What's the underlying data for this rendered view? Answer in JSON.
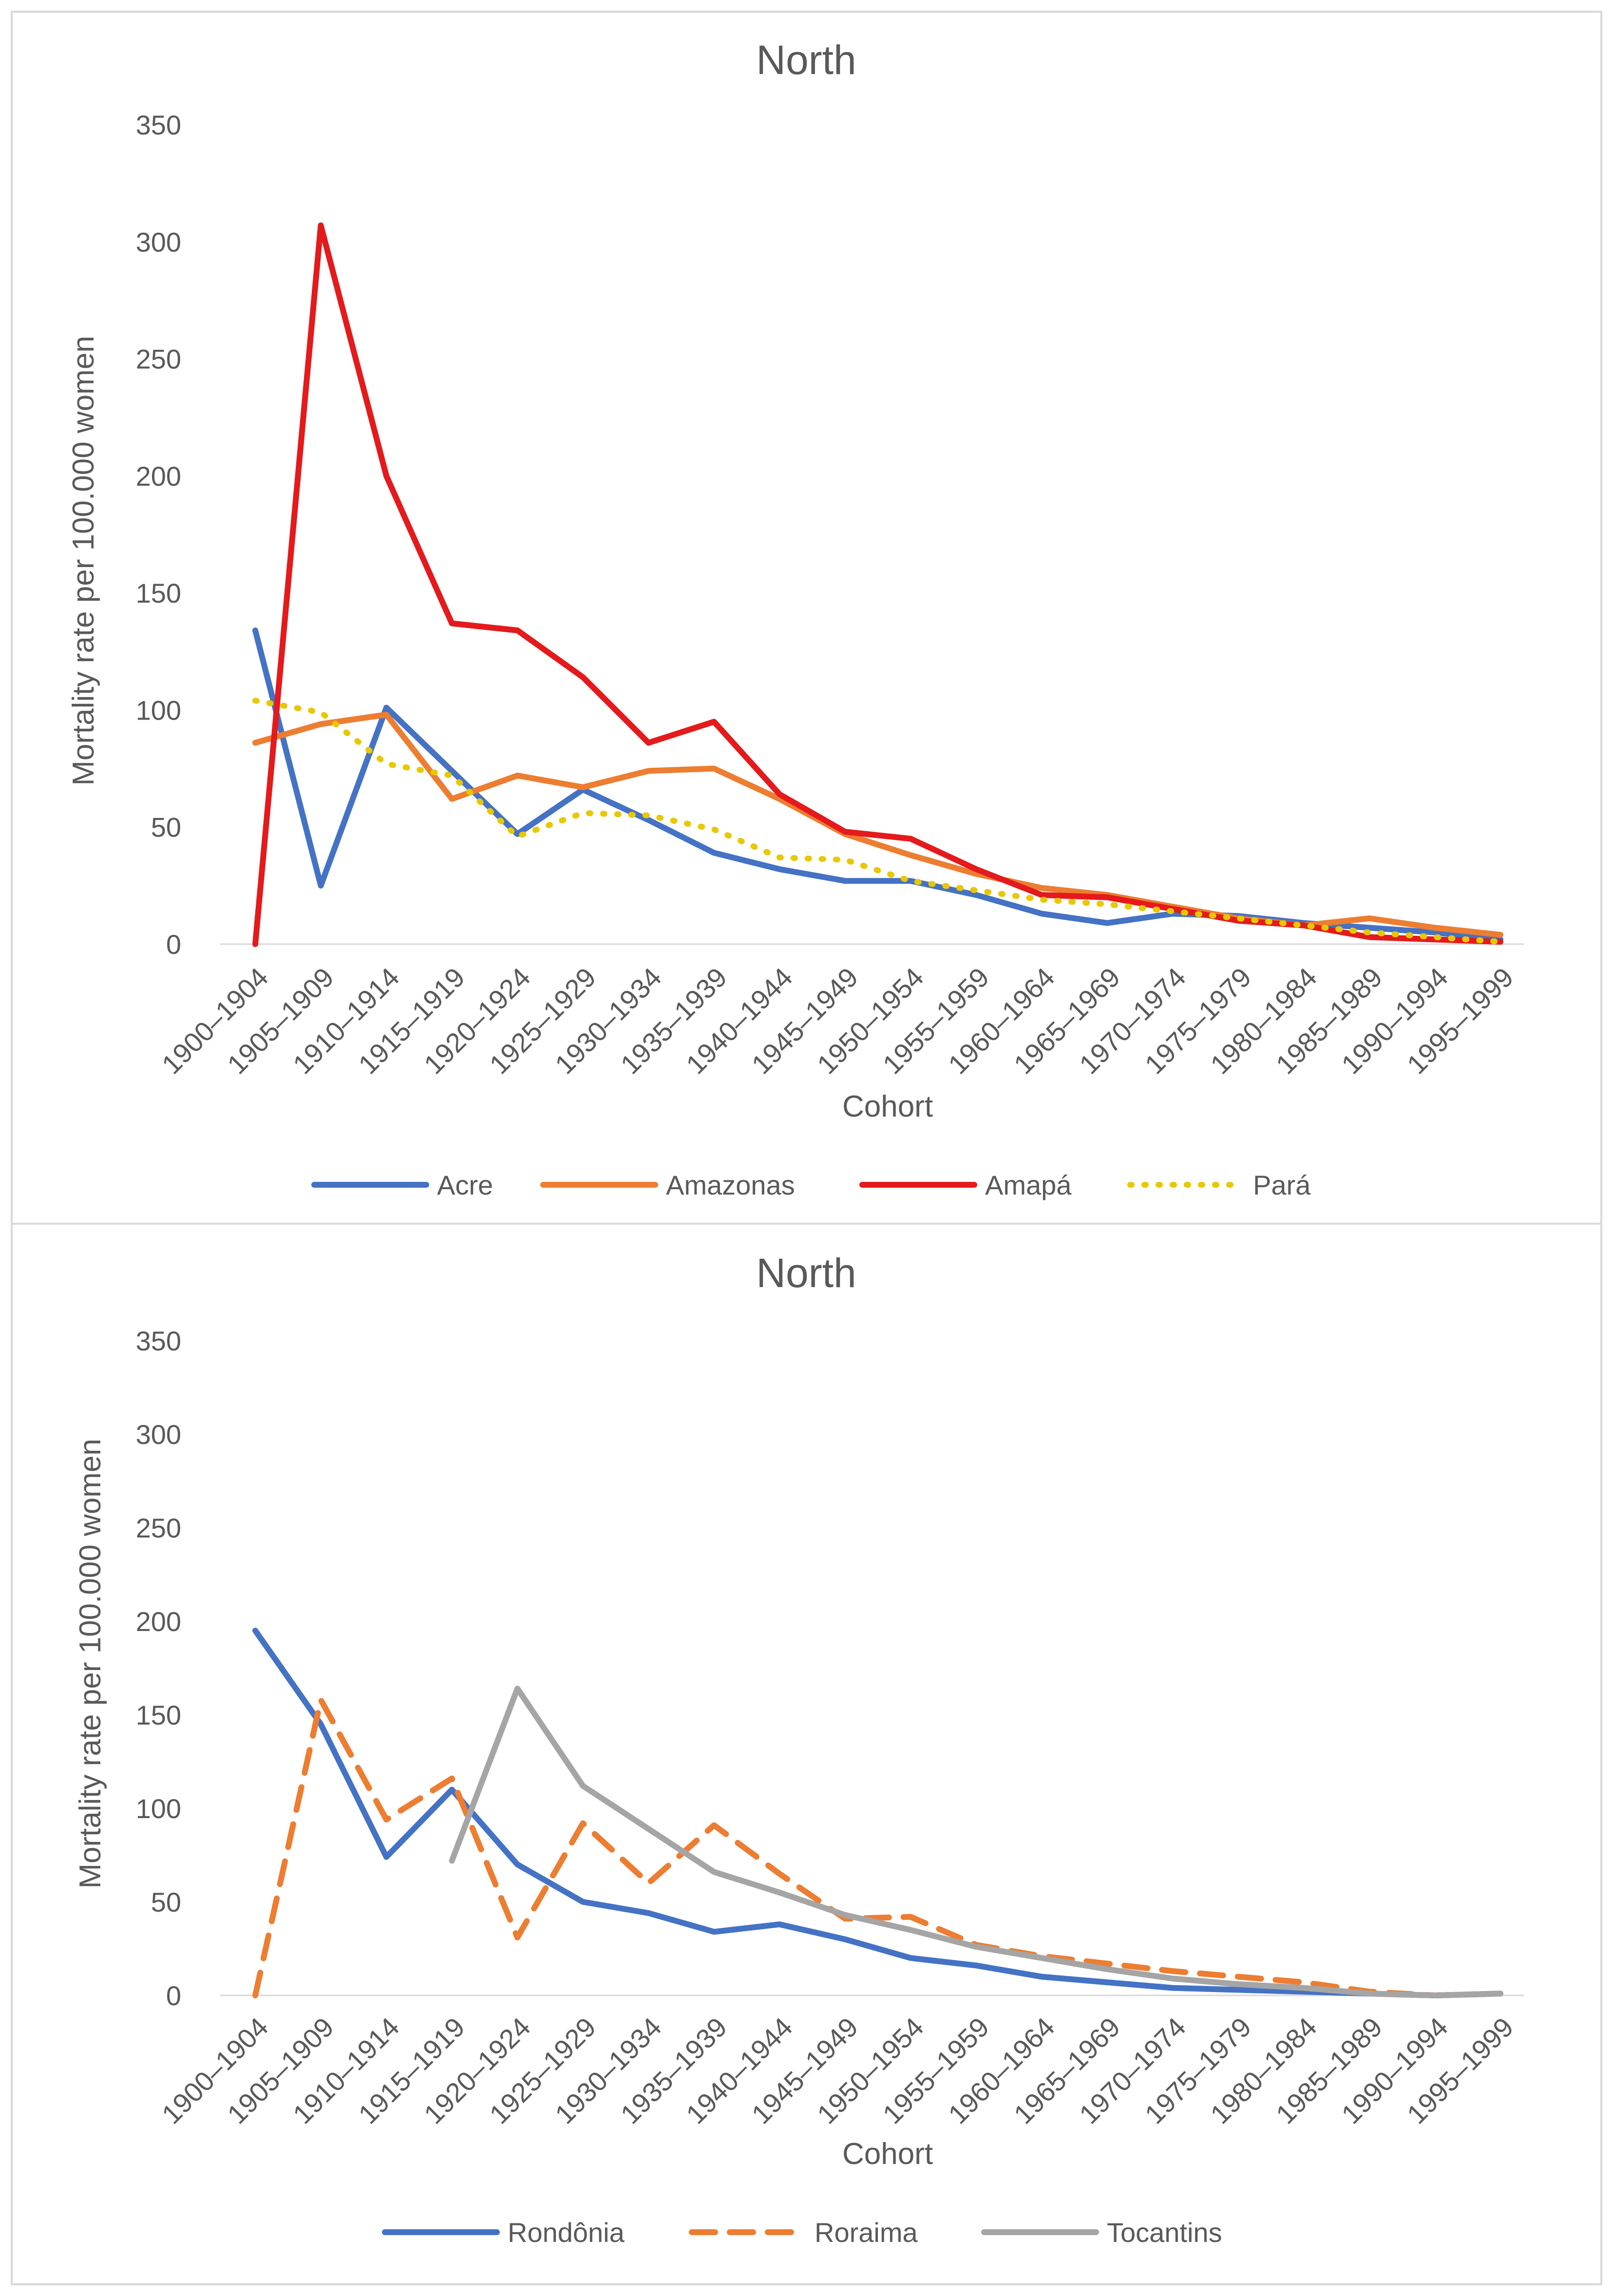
{
  "chart_data": [
    {
      "type": "line",
      "title": "North",
      "xlabel": "Cohort",
      "ylabel": "Mortality rate per 100.000 women",
      "ylim": [
        0,
        350
      ],
      "yticks": [
        0,
        50,
        100,
        150,
        200,
        250,
        300,
        350
      ],
      "grid": false,
      "legend_position": "bottom",
      "categories": [
        "1900–1904",
        "1905–1909",
        "1910–1914",
        "1915–1919",
        "1920–1924",
        "1925–1929",
        "1930–1934",
        "1935–1939",
        "1940–1944",
        "1945–1949",
        "1950–1954",
        "1955–1959",
        "1960–1964",
        "1965–1969",
        "1970–1974",
        "1975–1979",
        "1980–1984",
        "1985–1989",
        "1990–1994",
        "1995–1999"
      ],
      "series": [
        {
          "name": "Acre",
          "color": "#4472c4",
          "dash": "solid",
          "values": [
            134,
            25,
            101,
            74,
            47,
            66,
            53,
            39,
            32,
            27,
            27,
            21,
            13,
            9,
            13,
            12,
            9,
            7,
            5,
            2
          ]
        },
        {
          "name": "Amazonas",
          "color": "#ed7d31",
          "dash": "solid",
          "values": [
            86,
            94,
            98,
            62,
            72,
            67,
            74,
            75,
            62,
            47,
            38,
            30,
            24,
            21,
            16,
            11,
            8,
            11,
            7,
            4
          ]
        },
        {
          "name": "Amapá",
          "color": "#e41a1c",
          "dash": "solid",
          "values": [
            0,
            307,
            200,
            137,
            134,
            114,
            86,
            95,
            64,
            48,
            45,
            32,
            21,
            20,
            15,
            10,
            8,
            3,
            2,
            1
          ]
        },
        {
          "name": "Pará",
          "color": "#e8c800",
          "dash": "dotted",
          "values": [
            104,
            99,
            77,
            72,
            46,
            56,
            55,
            49,
            37,
            36,
            27,
            23,
            19,
            17,
            14,
            11,
            8,
            5,
            3,
            1
          ]
        }
      ]
    },
    {
      "type": "line",
      "title": "North",
      "xlabel": "Cohort",
      "ylabel": "Mortality rate per 100.000 women",
      "ylim": [
        0,
        350
      ],
      "yticks": [
        0,
        50,
        100,
        150,
        200,
        250,
        300,
        350
      ],
      "grid": false,
      "legend_position": "bottom",
      "categories": [
        "1900–1904",
        "1905–1909",
        "1910–1914",
        "1915–1919",
        "1920–1924",
        "1925–1929",
        "1930–1934",
        "1935–1939",
        "1940–1944",
        "1945–1949",
        "1950–1954",
        "1955–1959",
        "1960–1964",
        "1965–1969",
        "1970–1974",
        "1975–1979",
        "1980–1984",
        "1985–1989",
        "1990–1994",
        "1995–1999"
      ],
      "series": [
        {
          "name": "Rondônia",
          "color": "#4472c4",
          "dash": "solid",
          "values": [
            195,
            145,
            74,
            110,
            70,
            50,
            44,
            34,
            38,
            30,
            20,
            16,
            10,
            7,
            4,
            3,
            2,
            1,
            0,
            1
          ]
        },
        {
          "name": "Roraima",
          "color": "#ed7d31",
          "dash": "dashed",
          "values": [
            0,
            158,
            94,
            116,
            31,
            92,
            60,
            91,
            65,
            41,
            42,
            27,
            21,
            17,
            13,
            10,
            7,
            2,
            0,
            1
          ]
        },
        {
          "name": "Tocantins",
          "color": "#a5a5a5",
          "dash": "solid",
          "values": [
            null,
            null,
            null,
            72,
            164,
            112,
            89,
            66,
            55,
            43,
            35,
            26,
            20,
            14,
            9,
            6,
            4,
            1,
            0,
            1
          ]
        }
      ]
    }
  ]
}
